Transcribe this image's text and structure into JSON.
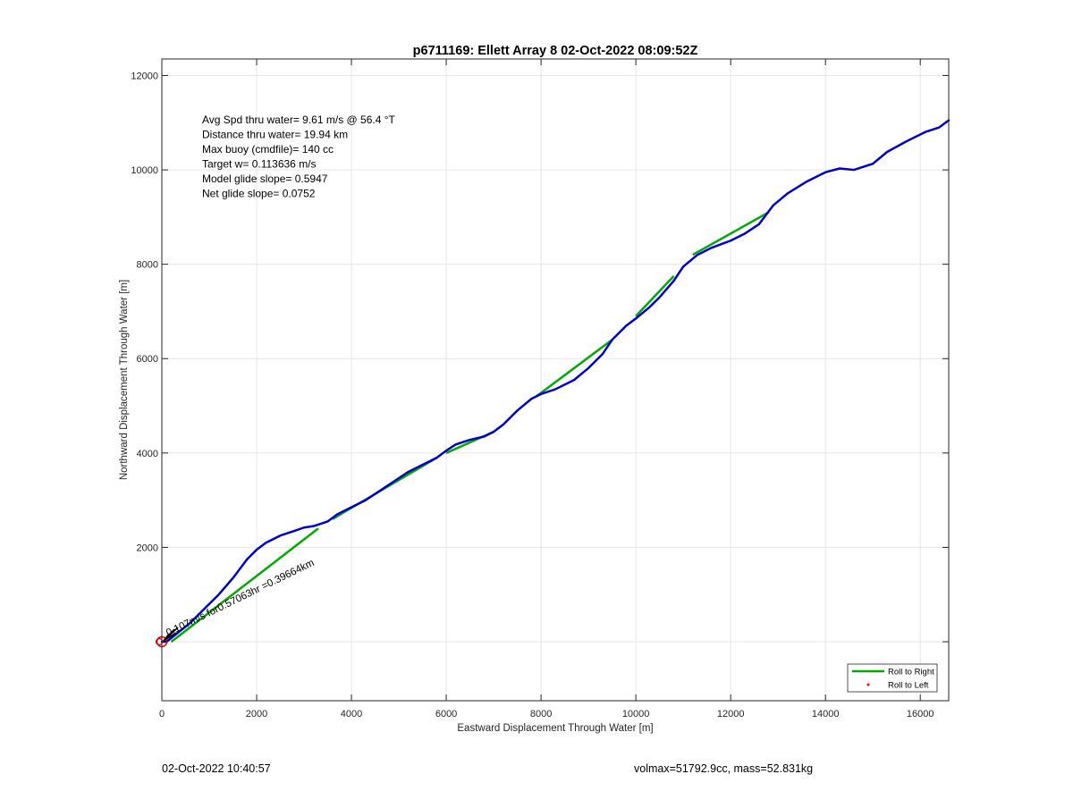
{
  "footer": {
    "timestamp": "02-Oct-2022 10:40:57",
    "mass_info": "volmax=51792.9cc, mass=52.831kg"
  },
  "colors": {
    "track": "#0000c8",
    "roll_right": "#00aa00",
    "roll_left": "#ff0000",
    "grid": "#e6e6e6",
    "origin_marker": "#dd0000"
  },
  "chart_data": {
    "type": "line",
    "title": "p6711169: Ellett Array 8 02-Oct-2022 08:09:52Z",
    "xlabel": "Eastward Displacement Through Water [m]",
    "ylabel": "Northward Displacement Through Water [m]",
    "xlim": [
      0,
      16600
    ],
    "ylim": [
      -1250,
      12350
    ],
    "xticks": [
      0,
      2000,
      4000,
      6000,
      8000,
      10000,
      12000,
      14000,
      16000
    ],
    "yticks": [
      2000,
      4000,
      6000,
      8000,
      10000,
      12000
    ],
    "grid": true,
    "legend_position": "bottom-right",
    "legend": [
      {
        "label": "Roll to Right",
        "style": "line",
        "color": "#00aa00"
      },
      {
        "label": "Roll to Left",
        "style": "dot",
        "color": "#ff0000"
      }
    ],
    "annotations": [
      "Avg Spd thru water=  9.61 m/s @  56.4 °T",
      "Distance thru water= 19.94 km",
      "Max buoy (cmdfile)= 140 cc",
      "Target w= 0.113636 m/s",
      "Model glide slope= 0.5947",
      "Net glide slope= 0.0752"
    ],
    "rotated_label": "0.107m/s for0.57063hr =0.39664km",
    "series": [
      {
        "role": "track",
        "color": "#0000c8",
        "x": [
          0,
          100,
          200,
          350,
          600,
          900,
          1200,
          1500,
          1800,
          2000,
          2200,
          2500,
          2800,
          3000,
          3200,
          3500,
          3700,
          4000,
          4300,
          4600,
          4900,
          5200,
          5500,
          5800,
          6000,
          6200,
          6500,
          6800,
          7000,
          7200,
          7500,
          7800,
          8000,
          8300,
          8700,
          9000,
          9300,
          9500,
          9800,
          10000,
          10300,
          10500,
          10800,
          11000,
          11300,
          11600,
          12000,
          12300,
          12600,
          12900,
          13200,
          13600,
          14000,
          14300,
          14600,
          15000,
          15300,
          15700,
          16100,
          16400,
          16600
        ],
        "y": [
          0,
          0,
          80,
          200,
          400,
          700,
          1000,
          1350,
          1750,
          1950,
          2100,
          2250,
          2350,
          2420,
          2450,
          2550,
          2700,
          2850,
          3000,
          3200,
          3400,
          3600,
          3750,
          3900,
          4050,
          4180,
          4280,
          4350,
          4450,
          4600,
          4900,
          5150,
          5250,
          5350,
          5550,
          5800,
          6100,
          6400,
          6700,
          6850,
          7100,
          7300,
          7650,
          7950,
          8200,
          8350,
          8500,
          8650,
          8850,
          9250,
          9500,
          9750,
          9950,
          10030,
          10000,
          10130,
          10380,
          10600,
          10800,
          10900,
          11050
        ]
      },
      {
        "role": "roll_right_segments",
        "color": "#00aa00",
        "segments": [
          {
            "x": [
              200,
              3300
            ],
            "y": [
              0,
              2400
            ]
          },
          {
            "x": [
              3600,
              5800
            ],
            "y": [
              2600,
              3900
            ]
          },
          {
            "x": [
              6000,
              7000
            ],
            "y": [
              4000,
              4450
            ]
          },
          {
            "x": [
              7900,
              9500
            ],
            "y": [
              5200,
              6400
            ]
          },
          {
            "x": [
              10000,
              10800
            ],
            "y": [
              6900,
              7750
            ]
          },
          {
            "x": [
              11200,
              12800
            ],
            "y": [
              8200,
              9100
            ]
          }
        ]
      }
    ]
  }
}
